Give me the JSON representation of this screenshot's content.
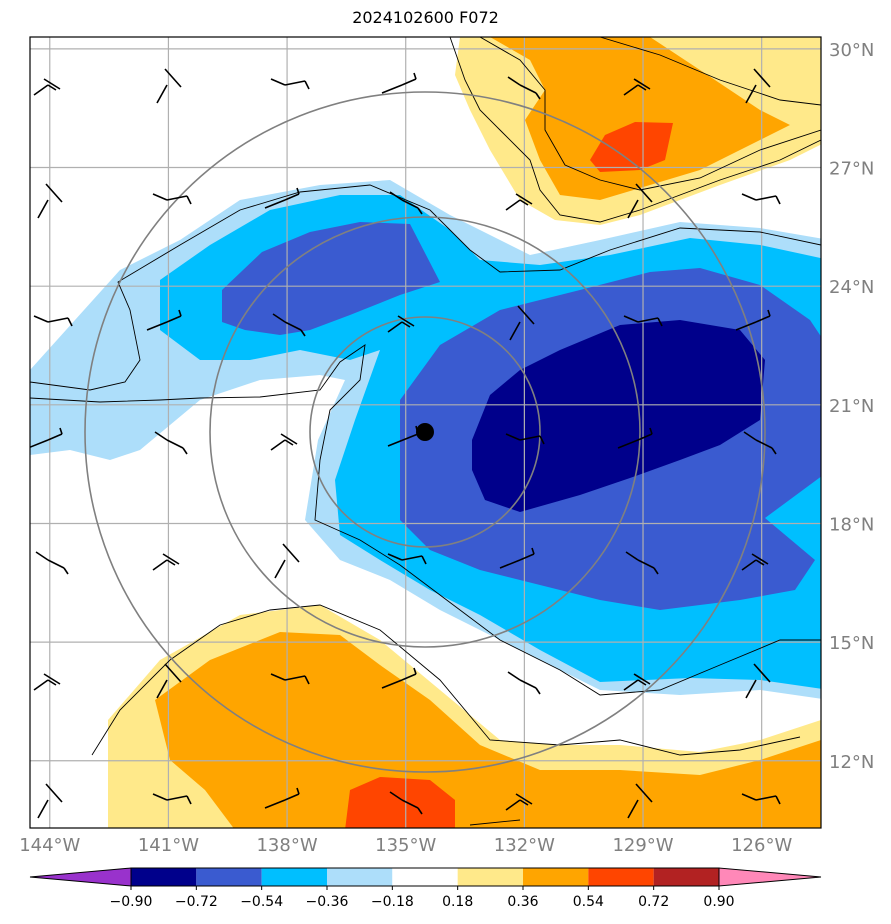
{
  "title": "2024102600 F072",
  "map": {
    "lon_range": [
      -144.5,
      -124.5
    ],
    "lat_range": [
      10.3,
      30.3
    ],
    "lat_ticks": [
      30,
      27,
      24,
      21,
      18,
      15,
      12
    ],
    "lat_labels": [
      "30°N",
      "27°N",
      "24°N",
      "21°N",
      "18°N",
      "15°N",
      "12°N"
    ],
    "lon_ticks": [
      -144,
      -141,
      -138,
      -135,
      -132,
      -129,
      -126
    ],
    "lon_labels": [
      "144°W",
      "141°W",
      "138°W",
      "135°W",
      "132°W",
      "129°W",
      "126°W"
    ],
    "storm_center": {
      "lon": -134.5,
      "lat": 20.2
    },
    "range_rings_deg": [
      3,
      6,
      9
    ]
  },
  "colorbar": {
    "levels": [
      "−0.90",
      "−0.72",
      "−0.54",
      "−0.36",
      "−0.18",
      "0.18",
      "0.36",
      "0.54",
      "0.72",
      "0.90"
    ],
    "colors": [
      "#9932CC",
      "#00008B",
      "#3A5BD0",
      "#00BFFF",
      "#ADDEFA",
      "#FFFFFF",
      "#FFE98A",
      "#FFA500",
      "#FF4500",
      "#B22222",
      "#FF88B8"
    ]
  }
}
